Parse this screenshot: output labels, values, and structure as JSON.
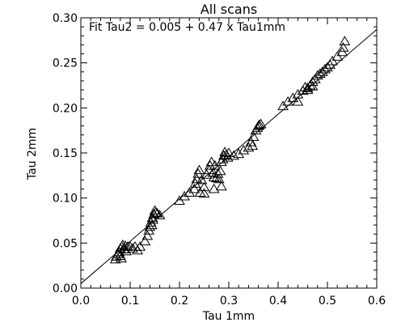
{
  "chart_data": {
    "type": "scatter",
    "title": "All scans",
    "xlabel": "Tau 1mm",
    "ylabel": "Tau 2mm",
    "annotation": "Fit Tau2 = 0.005 + 0.47 x Tau1mm",
    "xlim": [
      0.0,
      0.6
    ],
    "ylim": [
      0.0,
      0.3
    ],
    "x_ticks": [
      "0.0",
      "0.1",
      "0.2",
      "0.3",
      "0.4",
      "0.5",
      "0.6"
    ],
    "y_ticks": [
      "0.00",
      "0.05",
      "0.10",
      "0.15",
      "0.20",
      "0.25",
      "0.30"
    ],
    "marker": "triangle-open",
    "fit_line": {
      "intercept": 0.005,
      "slope": 0.47
    },
    "points": [
      [
        0.07,
        0.032
      ],
      [
        0.072,
        0.035
      ],
      [
        0.075,
        0.038
      ],
      [
        0.078,
        0.04
      ],
      [
        0.08,
        0.044
      ],
      [
        0.083,
        0.046
      ],
      [
        0.085,
        0.048
      ],
      [
        0.088,
        0.043
      ],
      [
        0.09,
        0.047
      ],
      [
        0.092,
        0.041
      ],
      [
        0.095,
        0.046
      ],
      [
        0.1,
        0.046
      ],
      [
        0.105,
        0.044
      ],
      [
        0.11,
        0.046
      ],
      [
        0.115,
        0.042
      ],
      [
        0.12,
        0.046
      ],
      [
        0.08,
        0.036
      ],
      [
        0.082,
        0.033
      ],
      [
        0.13,
        0.052
      ],
      [
        0.135,
        0.058
      ],
      [
        0.138,
        0.064
      ],
      [
        0.14,
        0.068
      ],
      [
        0.142,
        0.073
      ],
      [
        0.145,
        0.078
      ],
      [
        0.148,
        0.082
      ],
      [
        0.15,
        0.086
      ],
      [
        0.152,
        0.084
      ],
      [
        0.155,
        0.083
      ],
      [
        0.16,
        0.081
      ],
      [
        0.144,
        0.07
      ],
      [
        0.146,
        0.076
      ],
      [
        0.2,
        0.097
      ],
      [
        0.21,
        0.102
      ],
      [
        0.22,
        0.106
      ],
      [
        0.23,
        0.11
      ],
      [
        0.232,
        0.116
      ],
      [
        0.235,
        0.121
      ],
      [
        0.238,
        0.127
      ],
      [
        0.24,
        0.131
      ],
      [
        0.245,
        0.12
      ],
      [
        0.25,
        0.112
      ],
      [
        0.255,
        0.126
      ],
      [
        0.26,
        0.131
      ],
      [
        0.262,
        0.136
      ],
      [
        0.265,
        0.14
      ],
      [
        0.268,
        0.128
      ],
      [
        0.27,
        0.123
      ],
      [
        0.272,
        0.136
      ],
      [
        0.275,
        0.122
      ],
      [
        0.278,
        0.127
      ],
      [
        0.28,
        0.121
      ],
      [
        0.283,
        0.13
      ],
      [
        0.285,
        0.14
      ],
      [
        0.288,
        0.143
      ],
      [
        0.29,
        0.147
      ],
      [
        0.292,
        0.151
      ],
      [
        0.295,
        0.148
      ],
      [
        0.298,
        0.145
      ],
      [
        0.3,
        0.15
      ],
      [
        0.27,
        0.11
      ],
      [
        0.285,
        0.113
      ],
      [
        0.25,
        0.105
      ],
      [
        0.242,
        0.106
      ],
      [
        0.31,
        0.147
      ],
      [
        0.32,
        0.149
      ],
      [
        0.33,
        0.153
      ],
      [
        0.34,
        0.156
      ],
      [
        0.345,
        0.162
      ],
      [
        0.35,
        0.168
      ],
      [
        0.355,
        0.175
      ],
      [
        0.358,
        0.178
      ],
      [
        0.36,
        0.18
      ],
      [
        0.362,
        0.181
      ],
      [
        0.365,
        0.182
      ],
      [
        0.348,
        0.158
      ],
      [
        0.41,
        0.202
      ],
      [
        0.42,
        0.207
      ],
      [
        0.43,
        0.211
      ],
      [
        0.44,
        0.215
      ],
      [
        0.45,
        0.219
      ],
      [
        0.455,
        0.223
      ],
      [
        0.46,
        0.222
      ],
      [
        0.465,
        0.225
      ],
      [
        0.47,
        0.229
      ],
      [
        0.475,
        0.232
      ],
      [
        0.48,
        0.236
      ],
      [
        0.485,
        0.238
      ],
      [
        0.49,
        0.24
      ],
      [
        0.495,
        0.243
      ],
      [
        0.5,
        0.245
      ],
      [
        0.505,
        0.248
      ],
      [
        0.51,
        0.252
      ],
      [
        0.52,
        0.257
      ],
      [
        0.53,
        0.262
      ],
      [
        0.532,
        0.267
      ],
      [
        0.535,
        0.274
      ],
      [
        0.46,
        0.22
      ],
      [
        0.47,
        0.224
      ],
      [
        0.44,
        0.207
      ]
    ]
  }
}
